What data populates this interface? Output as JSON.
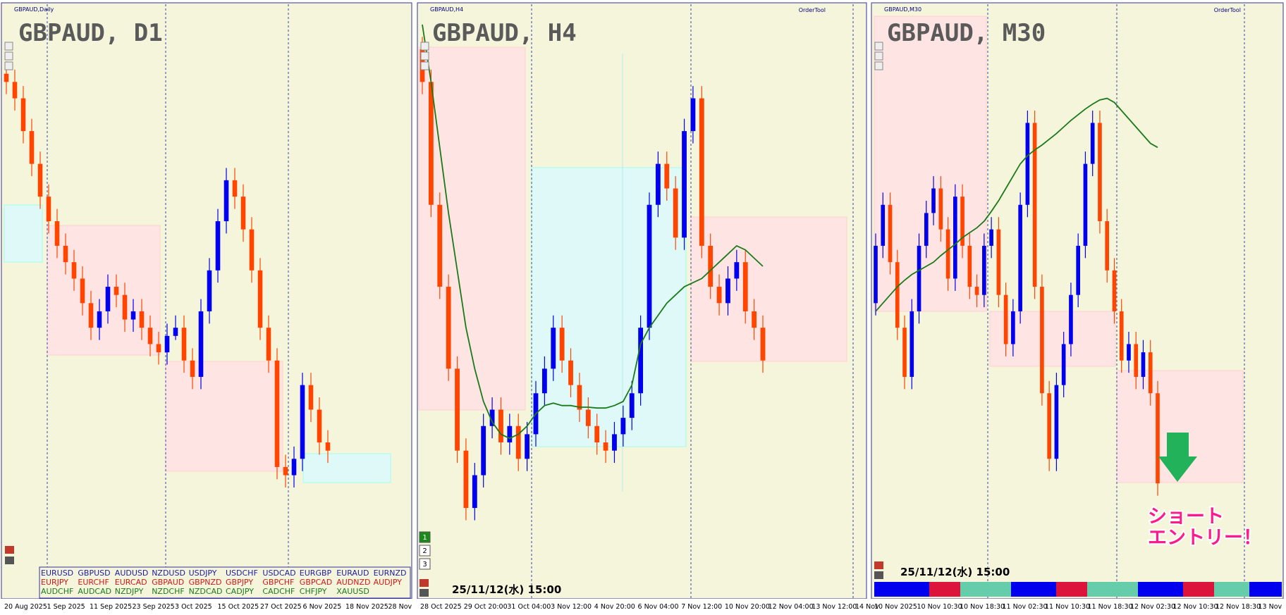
{
  "panels": [
    {
      "header": "GBPAUD,Daily",
      "title": "GBPAUD, D1",
      "ylim": [
        2.027,
        2.1
      ],
      "dates": [
        "20 Aug 2025",
        "1 Sep 2025",
        "11 Sep 2025",
        "23 Sep 2025",
        "3 Oct 2025",
        "15 Oct 2025",
        "27 Oct 2025",
        "6 Nov 2025",
        "18 Nov 2025",
        "28 Nov"
      ],
      "candles": [
        [
          2.091,
          2.0925,
          2.0885,
          2.09
        ],
        [
          2.09,
          2.0915,
          2.0865,
          2.088
        ],
        [
          2.088,
          2.0895,
          2.0825,
          2.084
        ],
        [
          2.084,
          2.0855,
          2.0785,
          2.08
        ],
        [
          2.08,
          2.0815,
          2.0745,
          2.076
        ],
        [
          2.076,
          2.0775,
          2.0715,
          2.073
        ],
        [
          2.073,
          2.0745,
          2.0685,
          2.07
        ],
        [
          2.07,
          2.0715,
          2.0665,
          2.068
        ],
        [
          2.068,
          2.0695,
          2.0645,
          2.066
        ],
        [
          2.066,
          2.0675,
          2.0615,
          2.063
        ],
        [
          2.063,
          2.0645,
          2.0585,
          2.06
        ],
        [
          2.06,
          2.0635,
          2.0585,
          2.062
        ],
        [
          2.062,
          2.0665,
          2.0605,
          2.065
        ],
        [
          2.065,
          2.0665,
          2.0625,
          2.064
        ],
        [
          2.064,
          2.0655,
          2.0595,
          2.061
        ],
        [
          2.061,
          2.0635,
          2.0595,
          2.062
        ],
        [
          2.062,
          2.0635,
          2.0585,
          2.06
        ],
        [
          2.06,
          2.0615,
          2.0565,
          2.058
        ],
        [
          2.058,
          2.0595,
          2.0555,
          2.057
        ],
        [
          2.057,
          2.0605,
          2.0555,
          2.059
        ],
        [
          2.059,
          2.0615,
          2.0585,
          2.06
        ],
        [
          2.06,
          2.0615,
          2.0545,
          2.056
        ],
        [
          2.056,
          2.0575,
          2.0525,
          2.054
        ],
        [
          2.054,
          2.0635,
          2.0525,
          2.062
        ],
        [
          2.062,
          2.0685,
          2.0605,
          2.067
        ],
        [
          2.067,
          2.0745,
          2.0655,
          2.073
        ],
        [
          2.073,
          2.0795,
          2.0715,
          2.078
        ],
        [
          2.078,
          2.0795,
          2.0745,
          2.076
        ],
        [
          2.076,
          2.0775,
          2.0705,
          2.072
        ],
        [
          2.072,
          2.0735,
          2.0655,
          2.067
        ],
        [
          2.067,
          2.0685,
          2.0585,
          2.06
        ],
        [
          2.06,
          2.0615,
          2.0545,
          2.056
        ],
        [
          2.056,
          2.0575,
          2.0415,
          2.043
        ],
        [
          2.043,
          2.0445,
          2.0405,
          2.042
        ],
        [
          2.042,
          2.0455,
          2.0405,
          2.044
        ],
        [
          2.044,
          2.0545,
          2.0425,
          2.053
        ],
        [
          2.053,
          2.0545,
          2.0485,
          2.05
        ],
        [
          2.05,
          2.0515,
          2.0445,
          2.046
        ],
        [
          2.046,
          2.0475,
          2.0435,
          2.045
        ]
      ]
    },
    {
      "header": "GBPAUD,H4",
      "title": "GBPAUD, H4",
      "order_tool": "OrderTool",
      "timestamp": "25/11/12(水) 15:00",
      "ylim": [
        2.027,
        2.1
      ],
      "dates": [
        "28 Oct 2025",
        "29 Oct 20:00",
        "31 Oct 04:00",
        "3 Nov 12:00",
        "4 Nov 20:00",
        "6 Nov 04:00",
        "7 Nov 12:00",
        "10 Nov 20:00",
        "12 Nov 04:00",
        "13 Nov 12:00",
        "14 Nov"
      ],
      "candles": [
        [
          2.094,
          2.0955,
          2.0885,
          2.09
        ],
        [
          2.09,
          2.0915,
          2.0735,
          2.075
        ],
        [
          2.075,
          2.0765,
          2.0635,
          2.065
        ],
        [
          2.065,
          2.0665,
          2.0535,
          2.055
        ],
        [
          2.055,
          2.0565,
          2.0435,
          2.045
        ],
        [
          2.045,
          2.0465,
          2.0365,
          2.038
        ],
        [
          2.038,
          2.0435,
          2.0365,
          2.042
        ],
        [
          2.042,
          2.0495,
          2.0405,
          2.048
        ],
        [
          2.048,
          2.0515,
          2.0465,
          2.05
        ],
        [
          2.05,
          2.0515,
          2.0445,
          2.046
        ],
        [
          2.046,
          2.0495,
          2.0445,
          2.048
        ],
        [
          2.048,
          2.0495,
          2.0425,
          2.044
        ],
        [
          2.044,
          2.0485,
          2.0425,
          2.047
        ],
        [
          2.047,
          2.0535,
          2.0455,
          2.052
        ],
        [
          2.052,
          2.0565,
          2.0505,
          2.055
        ],
        [
          2.055,
          2.0615,
          2.0535,
          2.06
        ],
        [
          2.06,
          2.0615,
          2.0545,
          2.056
        ],
        [
          2.056,
          2.0575,
          2.0515,
          2.053
        ],
        [
          2.053,
          2.0545,
          2.0485,
          2.05
        ],
        [
          2.05,
          2.0515,
          2.0465,
          2.048
        ],
        [
          2.048,
          2.0495,
          2.0445,
          2.046
        ],
        [
          2.046,
          2.0475,
          2.0435,
          2.045
        ],
        [
          2.045,
          2.0485,
          2.0435,
          2.047
        ],
        [
          2.047,
          2.0505,
          2.0455,
          2.049
        ],
        [
          2.049,
          2.0535,
          2.0475,
          2.052
        ],
        [
          2.052,
          2.0615,
          2.0505,
          2.06
        ],
        [
          2.06,
          2.0765,
          2.0585,
          2.075
        ],
        [
          2.075,
          2.0815,
          2.0735,
          2.08
        ],
        [
          2.08,
          2.0815,
          2.0755,
          2.077
        ],
        [
          2.077,
          2.0785,
          2.0695,
          2.071
        ],
        [
          2.071,
          2.0855,
          2.0695,
          2.084
        ],
        [
          2.084,
          2.0895,
          2.0825,
          2.088
        ],
        [
          2.088,
          2.0895,
          2.0685,
          2.07
        ],
        [
          2.07,
          2.0715,
          2.0635,
          2.065
        ],
        [
          2.065,
          2.0665,
          2.0615,
          2.063
        ],
        [
          2.063,
          2.0675,
          2.0615,
          2.066
        ],
        [
          2.066,
          2.0695,
          2.0645,
          2.068
        ],
        [
          2.068,
          2.0695,
          2.0605,
          2.062
        ],
        [
          2.062,
          2.0635,
          2.0585,
          2.06
        ],
        [
          2.06,
          2.0615,
          2.0545,
          2.056
        ]
      ],
      "ma": [
        2.097,
        2.09,
        2.082,
        2.074,
        2.067,
        2.06,
        2.055,
        2.051,
        2.0485,
        2.047,
        2.0465,
        2.047,
        2.048,
        2.0495,
        2.0505,
        2.0508,
        2.0505,
        2.0505,
        2.0503,
        2.0503,
        2.0502,
        2.0502,
        2.0505,
        2.051,
        2.053,
        2.058,
        2.06,
        2.0615,
        2.063,
        2.064,
        2.065,
        2.0655,
        2.066,
        2.067,
        2.068,
        2.069,
        2.07,
        2.0695,
        2.0685,
        2.0675
      ]
    },
    {
      "header": "GBPAUD,M30",
      "title": "GBPAUD, M30",
      "order_tool": "OrderTool",
      "timestamp": "25/11/12(水) 15:00",
      "ylim": [
        2.027,
        2.1
      ],
      "dates": [
        "10 Nov 2025",
        "10 Nov 10:30",
        "10 Nov 18:30",
        "11 Nov 02:30",
        "11 Nov 10:30",
        "11 Nov 18:30",
        "12 Nov 02:30",
        "12 Nov 10:30",
        "12 Nov 18:30",
        "13 Nov"
      ],
      "candles": [
        [
          2.063,
          2.0715,
          2.0615,
          2.07
        ],
        [
          2.07,
          2.0765,
          2.0685,
          2.075
        ],
        [
          2.075,
          2.0765,
          2.0665,
          2.068
        ],
        [
          2.068,
          2.0695,
          2.0585,
          2.06
        ],
        [
          2.06,
          2.0615,
          2.0525,
          2.054
        ],
        [
          2.054,
          2.0635,
          2.0525,
          2.062
        ],
        [
          2.062,
          2.0715,
          2.0605,
          2.07
        ],
        [
          2.07,
          2.0755,
          2.0685,
          2.074
        ],
        [
          2.074,
          2.0785,
          2.0725,
          2.077
        ],
        [
          2.077,
          2.0785,
          2.0705,
          2.072
        ],
        [
          2.072,
          2.0735,
          2.0645,
          2.066
        ],
        [
          2.066,
          2.0775,
          2.0645,
          2.076
        ],
        [
          2.076,
          2.0775,
          2.0685,
          2.07
        ],
        [
          2.07,
          2.0715,
          2.0635,
          2.065
        ],
        [
          2.065,
          2.0665,
          2.0625,
          2.064
        ],
        [
          2.064,
          2.0715,
          2.0625,
          2.07
        ],
        [
          2.07,
          2.0735,
          2.0685,
          2.072
        ],
        [
          2.072,
          2.0735,
          2.0625,
          2.064
        ],
        [
          2.064,
          2.0655,
          2.0565,
          2.058
        ],
        [
          2.058,
          2.0635,
          2.0565,
          2.062
        ],
        [
          2.062,
          2.0765,
          2.0605,
          2.075
        ],
        [
          2.075,
          2.0865,
          2.0735,
          2.085
        ],
        [
          2.085,
          2.0865,
          2.0635,
          2.065
        ],
        [
          2.065,
          2.0665,
          2.0505,
          2.052
        ],
        [
          2.052,
          2.0535,
          2.0425,
          2.044
        ],
        [
          2.044,
          2.0545,
          2.0425,
          2.053
        ],
        [
          2.053,
          2.0595,
          2.0515,
          2.058
        ],
        [
          2.058,
          2.0655,
          2.0565,
          2.064
        ],
        [
          2.064,
          2.0715,
          2.0625,
          2.07
        ],
        [
          2.07,
          2.0815,
          2.0685,
          2.08
        ],
        [
          2.08,
          2.0865,
          2.0785,
          2.085
        ],
        [
          2.085,
          2.0865,
          2.0715,
          2.073
        ],
        [
          2.073,
          2.0745,
          2.0655,
          2.067
        ],
        [
          2.067,
          2.0685,
          2.0605,
          2.062
        ],
        [
          2.062,
          2.0635,
          2.0545,
          2.056
        ],
        [
          2.056,
          2.0595,
          2.0545,
          2.058
        ],
        [
          2.058,
          2.0595,
          2.0525,
          2.054
        ],
        [
          2.054,
          2.0585,
          2.0525,
          2.057
        ],
        [
          2.057,
          2.0585,
          2.0505,
          2.052
        ],
        [
          2.052,
          2.0535,
          2.0395,
          2.041
        ]
      ],
      "ma": [
        2.062,
        2.063,
        2.064,
        2.065,
        2.0658,
        2.0665,
        2.067,
        2.0675,
        2.068,
        2.0688,
        2.0695,
        2.0702,
        2.071,
        2.0716,
        2.0722,
        2.073,
        2.0742,
        2.0755,
        2.077,
        2.0785,
        2.08,
        2.081,
        2.0817,
        2.0823,
        2.083,
        2.0837,
        2.0845,
        2.0853,
        2.086,
        2.0867,
        2.0873,
        2.0878,
        2.088,
        2.0875,
        2.0865,
        2.0855,
        2.0845,
        2.0835,
        2.0825,
        2.082
      ]
    }
  ],
  "symbols": [
    [
      "EURUSD",
      "GBPUSD",
      "AUDUSD",
      "NZDUSD",
      "USDJPY",
      "USDCHF",
      "USDCAD",
      "EURGBP",
      "EURAUD",
      "EURNZD"
    ],
    [
      "EURJPY",
      "EURCHF",
      "EURCAD",
      "GBPAUD",
      "GBPNZD",
      "GBPJPY",
      "GBPCHF",
      "GBPCAD",
      "AUDNZD",
      "AUDJPY"
    ],
    [
      "AUDCHF",
      "AUDCAD",
      "NZDJPY",
      "NZDCHF",
      "NZDCAD",
      "CADJPY",
      "CADCHF",
      "CHFJPY",
      "XAUUSD"
    ]
  ],
  "buttons": [
    "1",
    "2",
    "3"
  ],
  "annotation": [
    "ショート",
    "エントリー！"
  ]
}
